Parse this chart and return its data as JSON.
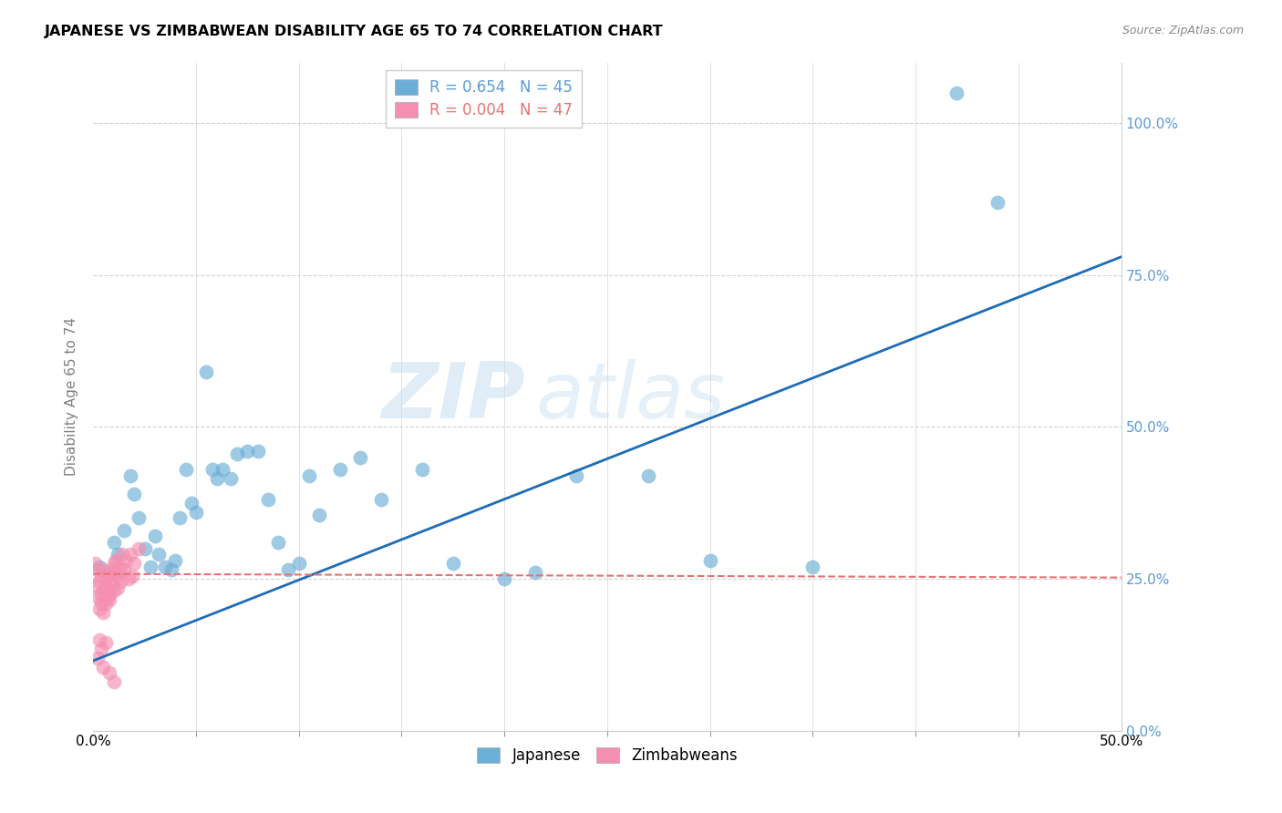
{
  "title": "JAPANESE VS ZIMBABWEAN DISABILITY AGE 65 TO 74 CORRELATION CHART",
  "source": "Source: ZipAtlas.com",
  "ylabel": "Disability Age 65 to 74",
  "xlim": [
    0.0,
    0.5
  ],
  "ylim": [
    0.0,
    1.1
  ],
  "xticks_major": [
    0.0,
    0.5
  ],
  "xticks_minor": [
    0.05,
    0.1,
    0.15,
    0.2,
    0.25,
    0.3,
    0.35,
    0.4,
    0.45
  ],
  "xticklabels_major": [
    "0.0%",
    "50.0%"
  ],
  "yticks": [
    0.0,
    0.25,
    0.5,
    0.75,
    1.0
  ],
  "yticklabels": [
    "0.0%",
    "25.0%",
    "50.0%",
    "75.0%",
    "100.0%"
  ],
  "legend_japanese_r": "R = 0.654",
  "legend_japanese_n": "N = 45",
  "legend_zimbabwean_r": "R = 0.004",
  "legend_zimbabwean_n": "N = 47",
  "watermark_zip": "ZIP",
  "watermark_atlas": "atlas",
  "japanese_color": "#6baed6",
  "zimbabwean_color": "#f48fb1",
  "japanese_line_color": "#1e6bb8",
  "zimbabwean_line_color": "#e57373",
  "ytick_color": "#5b9bd5",
  "japanese_x": [
    0.003,
    0.01,
    0.012,
    0.015,
    0.018,
    0.02,
    0.022,
    0.025,
    0.028,
    0.03,
    0.032,
    0.035,
    0.038,
    0.04,
    0.042,
    0.045,
    0.048,
    0.05,
    0.055,
    0.058,
    0.06,
    0.063,
    0.067,
    0.07,
    0.075,
    0.08,
    0.085,
    0.09,
    0.095,
    0.1,
    0.105,
    0.11,
    0.12,
    0.13,
    0.14,
    0.16,
    0.175,
    0.2,
    0.215,
    0.235,
    0.27,
    0.3,
    0.35,
    0.42,
    0.44
  ],
  "japanese_y": [
    0.27,
    0.31,
    0.29,
    0.33,
    0.42,
    0.39,
    0.35,
    0.3,
    0.27,
    0.32,
    0.29,
    0.27,
    0.265,
    0.28,
    0.35,
    0.43,
    0.375,
    0.36,
    0.59,
    0.43,
    0.415,
    0.43,
    0.415,
    0.455,
    0.46,
    0.46,
    0.38,
    0.31,
    0.265,
    0.275,
    0.42,
    0.355,
    0.43,
    0.45,
    0.38,
    0.43,
    0.275,
    0.25,
    0.26,
    0.42,
    0.42,
    0.28,
    0.27,
    1.05,
    0.87
  ],
  "zimbabwean_x": [
    0.001,
    0.001,
    0.002,
    0.002,
    0.003,
    0.003,
    0.004,
    0.004,
    0.004,
    0.005,
    0.005,
    0.005,
    0.006,
    0.006,
    0.006,
    0.007,
    0.007,
    0.007,
    0.008,
    0.008,
    0.008,
    0.009,
    0.009,
    0.01,
    0.01,
    0.01,
    0.011,
    0.011,
    0.012,
    0.012,
    0.013,
    0.013,
    0.014,
    0.015,
    0.016,
    0.017,
    0.018,
    0.019,
    0.02,
    0.022,
    0.002,
    0.003,
    0.004,
    0.005,
    0.006,
    0.008,
    0.01
  ],
  "zimbabwean_y": [
    0.275,
    0.24,
    0.265,
    0.22,
    0.2,
    0.245,
    0.255,
    0.21,
    0.225,
    0.195,
    0.23,
    0.265,
    0.21,
    0.25,
    0.235,
    0.22,
    0.255,
    0.23,
    0.26,
    0.225,
    0.215,
    0.265,
    0.24,
    0.23,
    0.26,
    0.275,
    0.28,
    0.255,
    0.235,
    0.26,
    0.27,
    0.245,
    0.29,
    0.265,
    0.28,
    0.25,
    0.29,
    0.255,
    0.275,
    0.3,
    0.12,
    0.15,
    0.135,
    0.105,
    0.145,
    0.095,
    0.08
  ],
  "blue_line_x0": 0.0,
  "blue_line_y0": 0.115,
  "blue_line_x1": 0.5,
  "blue_line_y1": 0.78,
  "pink_line_x0": 0.0,
  "pink_line_y0": 0.258,
  "pink_line_x1": 0.5,
  "pink_line_y1": 0.252
}
